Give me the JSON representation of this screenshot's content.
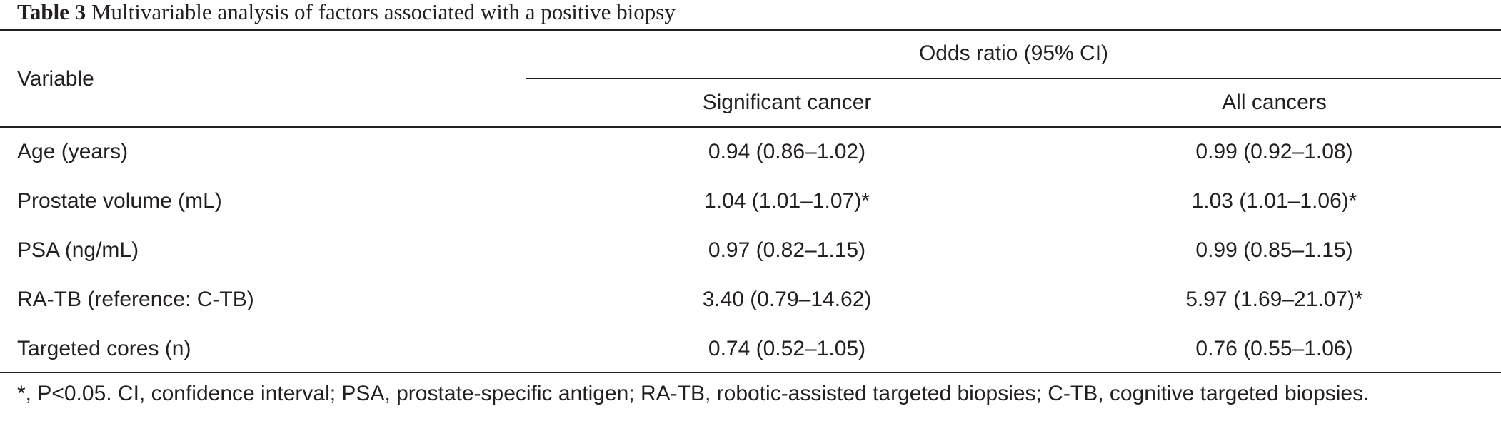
{
  "caption": {
    "label": "Table 3",
    "text": "Multivariable analysis of factors associated with a positive biopsy"
  },
  "table": {
    "header": {
      "variable": "Variable",
      "group": "Odds ratio (95% CI)",
      "col1": "Significant cancer",
      "col2": "All cancers"
    },
    "rows": [
      {
        "variable": "Age (years)",
        "significant": "0.94 (0.86–1.02)",
        "all": "0.99 (0.92–1.08)"
      },
      {
        "variable": "Prostate volume (mL)",
        "significant": "1.04 (1.01–1.07)*",
        "all": "1.03 (1.01–1.06)*"
      },
      {
        "variable": "PSA (ng/mL)",
        "significant": "0.97 (0.82–1.15)",
        "all": "0.99 (0.85–1.15)"
      },
      {
        "variable": "RA-TB (reference: C-TB)",
        "significant": "3.40 (0.79–14.62)",
        "all": "5.97 (1.69–21.07)*"
      },
      {
        "variable": "Targeted cores (n)",
        "significant": "0.74 (0.52–1.05)",
        "all": "0.76 (0.55–1.06)"
      }
    ]
  },
  "footnote": "*, P<0.05. CI, confidence interval; PSA, prostate-specific antigen; RA-TB, robotic-assisted targeted biopsies; C-TB, cognitive targeted biopsies."
}
